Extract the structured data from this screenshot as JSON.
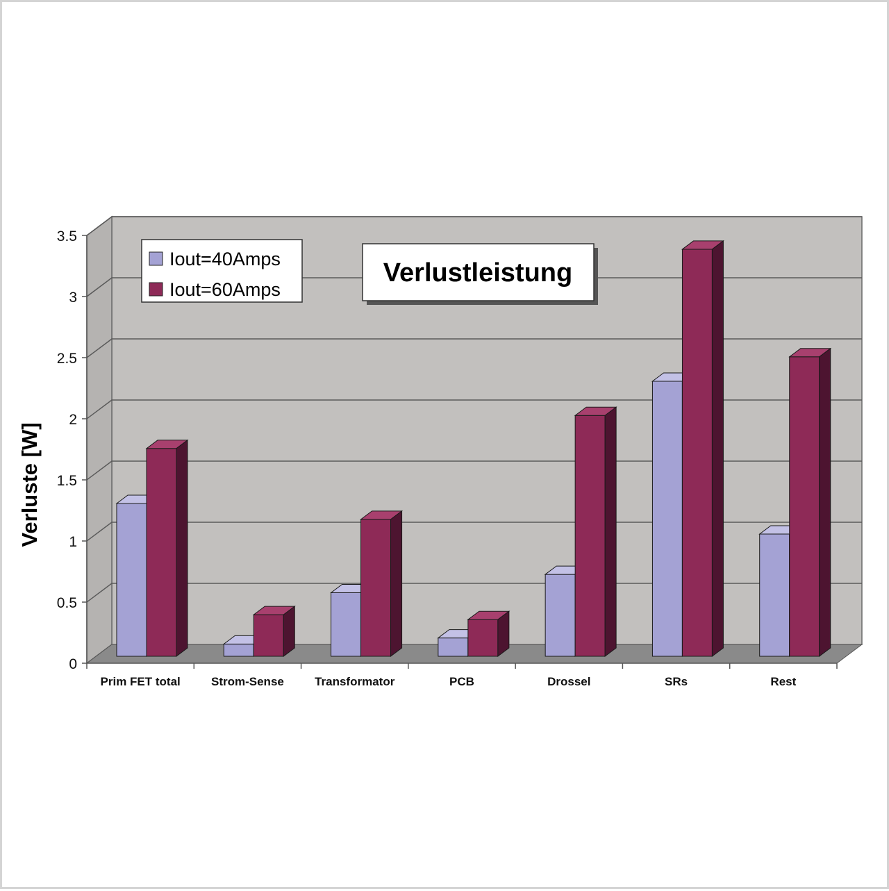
{
  "chart_data": {
    "type": "bar",
    "title": "Verlustleistung",
    "xlabel": "",
    "ylabel": "Verluste [W]",
    "ylim": [
      0,
      3.5
    ],
    "yticks": [
      "0",
      "0.5",
      "1",
      "1.5",
      "2",
      "2.5",
      "3",
      "3.5"
    ],
    "grid": true,
    "legend_position": "top-left",
    "categories": [
      "Prim FET total",
      "Strom-Sense",
      "Transformator",
      "PCB",
      "Drossel",
      "SRs",
      "Rest"
    ],
    "series": [
      {
        "name": "Iout=40Amps",
        "values": [
          1.25,
          0.1,
          0.52,
          0.15,
          0.67,
          2.25,
          1.0
        ],
        "color": "#a4a2d4",
        "side_color": "#6f6da0",
        "top_color": "#c3c1e6"
      },
      {
        "name": "Iout=60Amps",
        "values": [
          1.7,
          0.34,
          1.12,
          0.3,
          1.97,
          3.33,
          2.45
        ],
        "color": "#8e2a57",
        "side_color": "#4d1430",
        "top_color": "#a8406e"
      }
    ],
    "colors": {
      "wall": "#c2c0be",
      "floor": "#8a8a8a",
      "gridline": "#5a5a5a"
    }
  }
}
